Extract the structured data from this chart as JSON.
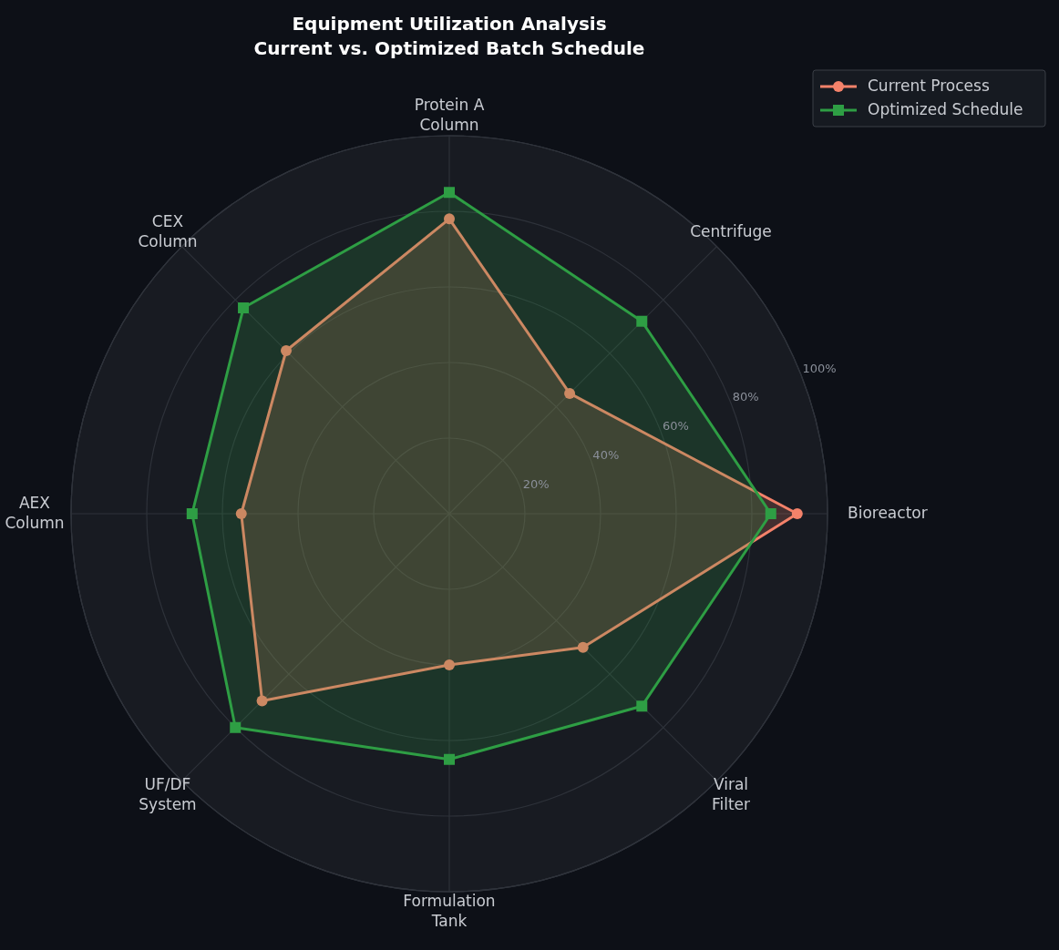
{
  "chart_data": {
    "type": "radar",
    "title": "Equipment Utilization Analysis\nCurrent vs. Optimized Batch Schedule",
    "categories": [
      "Protein A\nColumn",
      "Centrifuge",
      "Bioreactor",
      "Viral\nFilter",
      "Formulation\nTank",
      "UF/DF\nSystem",
      "AEX\nColumn",
      "CEX\nColumn"
    ],
    "series": [
      {
        "name": "Current Process",
        "color": "#f4826a",
        "marker": "circle",
        "values": [
          78,
          45,
          92,
          50,
          40,
          70,
          55,
          61
        ]
      },
      {
        "name": "Optimized Schedule",
        "color": "#2e9e44",
        "marker": "square",
        "values": [
          85,
          72,
          85,
          72,
          65,
          80,
          68,
          77
        ]
      }
    ],
    "ylim": [
      0,
      100
    ],
    "yticks": [
      {
        "value": 20,
        "label": "20%"
      },
      {
        "value": 40,
        "label": "40%"
      },
      {
        "value": 60,
        "label": "60%"
      },
      {
        "value": 80,
        "label": "80%"
      },
      {
        "value": 100,
        "label": "100%"
      }
    ],
    "grid": true,
    "legend": "top right",
    "line_style": "solid"
  }
}
